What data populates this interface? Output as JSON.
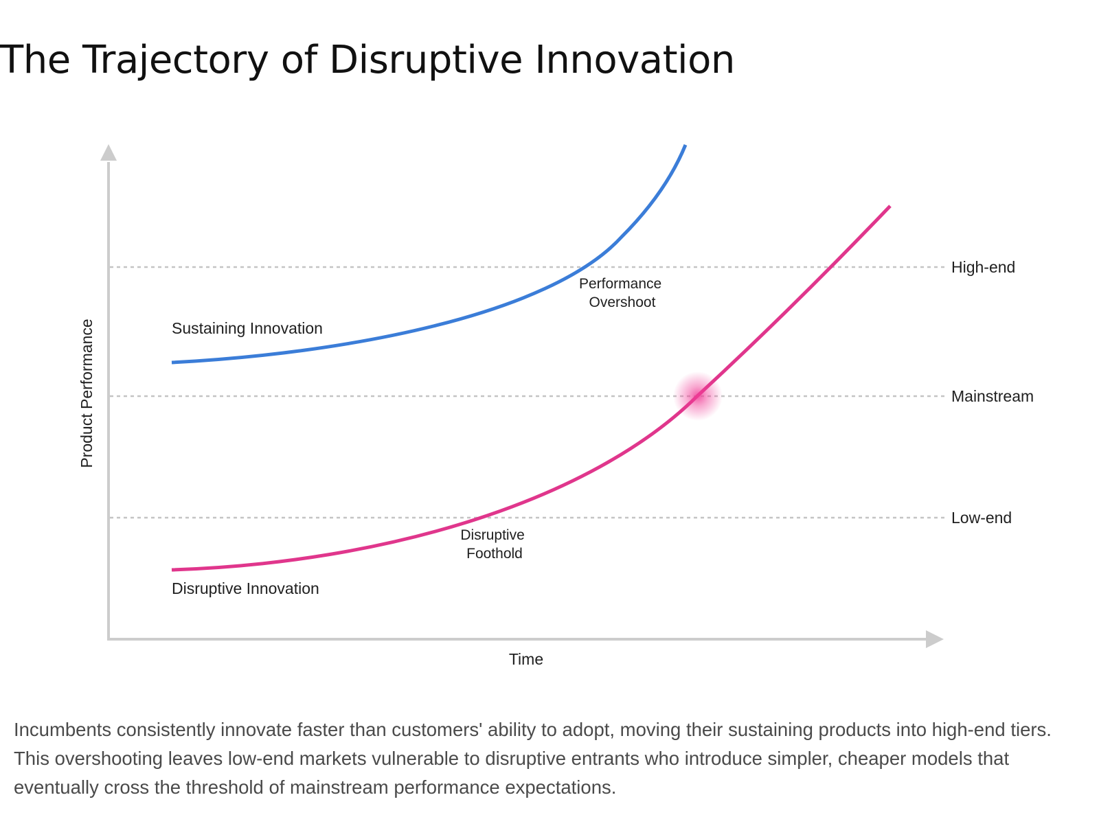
{
  "title": "The Trajectory of Disruptive Innovation",
  "axes": {
    "x_label": "Time",
    "y_label": "Product Performance"
  },
  "tiers": [
    {
      "id": "high-end",
      "label": "High-end"
    },
    {
      "id": "mainstream",
      "label": "Mainstream"
    },
    {
      "id": "low-end",
      "label": "Low-end"
    }
  ],
  "curves": {
    "sustaining": {
      "label": "Sustaining Innovation",
      "color": "#3b7dd8"
    },
    "disruptive": {
      "label": "Disruptive Innovation",
      "color": "#e0368c"
    }
  },
  "annotations": {
    "overshoot": [
      "Performance",
      "Overshoot"
    ],
    "foothold": [
      "Disruptive",
      "Foothold"
    ]
  },
  "colors": {
    "axis": "#cccccc",
    "tier_line": "#c4c4c4",
    "highlight": "#f03c96"
  },
  "caption": "Incumbents consistently innovate faster than customers' ability to adopt, moving their sustaining products into high-end tiers. This overshooting leaves low-end markets vulnerable to disruptive entrants who introduce simpler, cheaper models that eventually cross the threshold of mainstream performance expectations."
}
